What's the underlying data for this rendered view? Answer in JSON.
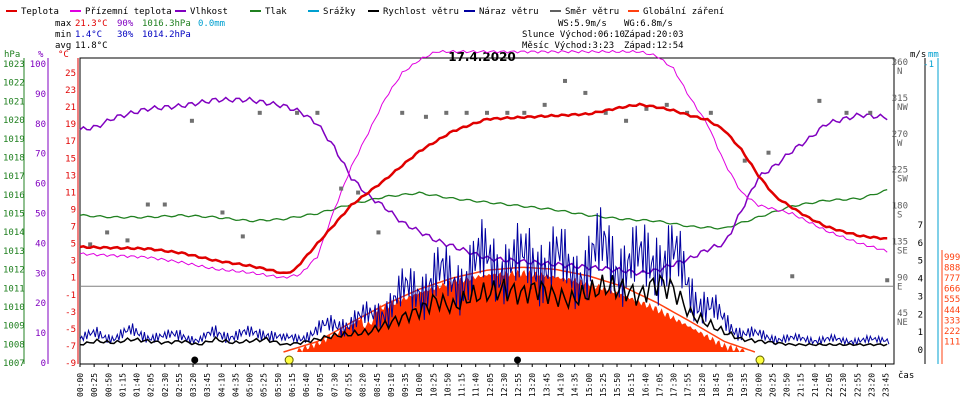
{
  "chart_data": {
    "type": "line",
    "title": "17.4.2020",
    "legend_items": [
      {
        "label": "Teplota",
        "color": "#e00000"
      },
      {
        "label": "Přízemní teplota",
        "color": "#e000e0"
      },
      {
        "label": "Vlhkost",
        "color": "#8000c0"
      },
      {
        "label": "Tlak",
        "color": "#208020"
      },
      {
        "label": "Srážky",
        "color": "#00a0d0"
      },
      {
        "label": "Rychlost větru",
        "color": "#000000"
      },
      {
        "label": "Náraz větru",
        "color": "#0000a0"
      },
      {
        "label": "Směr větru",
        "color": "#606060"
      },
      {
        "label": "Globální záření",
        "color": "#ff4010"
      }
    ],
    "stats": {
      "max_label": "max",
      "max_temp": "21.3°C",
      "max_hum": "90%",
      "max_press": "1016.3hPa",
      "max_rain": "0.0mm",
      "min_label": "min",
      "min_temp": "1.4°C",
      "min_hum": "30%",
      "min_press": "1014.2hPa",
      "avg_label": "avg",
      "avg_temp": "11.8°C"
    },
    "wind_info": {
      "ws": "WS:5.9m/s",
      "wg": "WG:6.8m/s",
      "sun": "Slunce Východ:06:10",
      "sun_set": "Západ:20:03",
      "moon": "Měsíc  Východ:3:23",
      "moon_set": "Západ:12:54"
    },
    "axes": {
      "hpa": {
        "label": "hPa",
        "color": "#208020",
        "ticks": [
          1023,
          1022,
          1021,
          1020,
          1019,
          1018,
          1017,
          1016,
          1015,
          1014,
          1013,
          1012,
          1011,
          1010,
          1009,
          1008,
          1007
        ]
      },
      "pct": {
        "label": "%",
        "color": "#8000c0",
        "ticks": [
          100,
          90,
          80,
          70,
          60,
          50,
          40,
          30,
          20,
          10,
          0
        ]
      },
      "degc": {
        "label": "°C",
        "color": "#e00000",
        "ticks": [
          25,
          23,
          21,
          19,
          17,
          15,
          13,
          11,
          9,
          7,
          5,
          3,
          1,
          -1,
          -3,
          -5,
          -7,
          -9
        ]
      },
      "ms": {
        "label": "m/s",
        "color": "#000000",
        "ticks": [
          7,
          6,
          5,
          4,
          3,
          2,
          1,
          0
        ]
      },
      "mm": {
        "label": "mm",
        "color": "#00a0d0",
        "ticks": [
          "-1"
        ]
      },
      "dir": {
        "color": "#606060",
        "ticks": [
          {
            "v": 360,
            "l": "N"
          },
          {
            "v": 315,
            "l": "NW"
          },
          {
            "v": 270,
            "l": "W"
          },
          {
            "v": 225,
            "l": "SW"
          },
          {
            "v": 180,
            "l": "S"
          },
          {
            "v": 135,
            "l": "SE"
          },
          {
            "v": 90,
            "l": "E"
          },
          {
            "v": 45,
            "l": "NE"
          }
        ]
      },
      "rad": {
        "color": "#ff4010",
        "ticks": [
          999,
          888,
          777,
          666,
          555,
          444,
          333,
          222,
          111
        ]
      }
    },
    "x_ticks": [
      "00:00",
      "00:25",
      "00:50",
      "01:15",
      "01:40",
      "02:05",
      "02:30",
      "02:55",
      "03:20",
      "03:45",
      "04:10",
      "04:35",
      "05:00",
      "05:25",
      "05:50",
      "06:15",
      "06:40",
      "07:05",
      "07:30",
      "07:55",
      "08:20",
      "08:45",
      "09:10",
      "09:35",
      "10:00",
      "10:25",
      "10:50",
      "11:15",
      "11:40",
      "12:05",
      "12:30",
      "12:55",
      "13:20",
      "13:45",
      "14:10",
      "14:35",
      "15:00",
      "15:25",
      "15:50",
      "16:15",
      "16:40",
      "17:05",
      "17:30",
      "17:55",
      "18:20",
      "18:45",
      "19:10",
      "19:35",
      "20:00",
      "20:25",
      "20:50",
      "21:15",
      "21:40",
      "22:05",
      "22:30",
      "22:55",
      "23:20",
      "23:45"
    ],
    "x_label": "čas",
    "series": [
      {
        "name": "Teplota",
        "unit": "°C",
        "x_hours": [
          0,
          1,
          2,
          3,
          4,
          5,
          5.5,
          6,
          6.3,
          7,
          8,
          9,
          10,
          11,
          12,
          13,
          14,
          15,
          16,
          16.5,
          17,
          17.5,
          18,
          18.5,
          19,
          19.5,
          20,
          20.5,
          21,
          21.5,
          22,
          22.5,
          23,
          23.9
        ],
        "values": [
          4.6,
          4.5,
          4.4,
          3.9,
          3.0,
          2.4,
          2.0,
          1.5,
          1.8,
          5.0,
          9.5,
          12.5,
          15.8,
          18.2,
          19.6,
          19.8,
          20.0,
          20.2,
          21.0,
          21.3,
          21.0,
          20.6,
          20.0,
          19.5,
          18.3,
          16.0,
          13.0,
          10.5,
          9.2,
          8.0,
          7.0,
          6.4,
          5.9,
          5.5
        ]
      },
      {
        "name": "Přízemní teplota",
        "unit": "°C",
        "x_hours": [
          0,
          1,
          2,
          3,
          4,
          5,
          6,
          6.5,
          7,
          7.5,
          8,
          8.5,
          9,
          9.5,
          10,
          10.5,
          11,
          12,
          13,
          14,
          15,
          16,
          16.5,
          17,
          17.5,
          18,
          18.5,
          19,
          19.5,
          20,
          21,
          22,
          23,
          23.9
        ],
        "values": [
          3.8,
          3.6,
          3.4,
          2.8,
          2.0,
          1.6,
          1.0,
          1.4,
          3.5,
          9.0,
          14.0,
          18.0,
          22.0,
          25.0,
          26.5,
          27.5,
          27.5,
          27.5,
          27.5,
          27.5,
          27.5,
          27.5,
          27.5,
          27.0,
          25.5,
          22.0,
          19.0,
          14.5,
          11.0,
          9.5,
          8.5,
          6.5,
          5.0,
          4.0
        ]
      },
      {
        "name": "Vlhkost",
        "unit": "%",
        "x_hours": [
          0,
          0.5,
          1,
          2,
          3,
          4,
          5,
          5.5,
          6,
          6.5,
          7,
          7.5,
          8,
          8.5,
          9,
          9.5,
          10,
          10.5,
          11,
          12,
          13,
          14,
          15,
          16,
          16.5,
          17,
          17.5,
          18,
          18.5,
          19,
          19.2,
          19.5,
          20,
          20.5,
          21,
          21.5,
          22,
          23,
          23.9
        ],
        "values": [
          78,
          79,
          82,
          85,
          86,
          88,
          88,
          87,
          86,
          84,
          80,
          72,
          62,
          56,
          52,
          47,
          44,
          41,
          39,
          35,
          34,
          33,
          32,
          31,
          30,
          31,
          33,
          35,
          38,
          40,
          44,
          51,
          62,
          66,
          71,
          75,
          80,
          83,
          82
        ]
      },
      {
        "name": "Tlak",
        "unit": "hPa",
        "x_hours": [
          0,
          1,
          2,
          3,
          4,
          5,
          6,
          7,
          8,
          9,
          10,
          11,
          12,
          13,
          14,
          15,
          16,
          17,
          18,
          19,
          20,
          21,
          22,
          23,
          23.9
        ],
        "values": [
          1014.9,
          1014.8,
          1014.8,
          1014.9,
          1014.8,
          1014.6,
          1014.7,
          1015.0,
          1015.5,
          1015.9,
          1016.1,
          1015.8,
          1015.6,
          1015.4,
          1015.2,
          1014.9,
          1014.7,
          1014.6,
          1014.3,
          1014.2,
          1014.8,
          1015.4,
          1015.7,
          1015.8,
          1016.3
        ]
      },
      {
        "name": "Rychlost větru",
        "unit": "m/s",
        "x_hours": [
          0,
          0.5,
          1,
          1.5,
          2,
          2.5,
          3,
          3.5,
          4,
          4.5,
          5,
          5.5,
          6,
          6.5,
          7,
          7.5,
          8,
          8.5,
          9,
          9.5,
          10,
          10.5,
          11,
          11.5,
          12,
          12.5,
          13,
          13.5,
          14,
          14.5,
          15,
          15.5,
          16,
          16.5,
          17,
          17.5,
          18,
          18.5,
          19,
          19.5,
          20,
          20.5,
          21,
          21.5,
          22,
          22.5,
          23,
          23.5,
          23.9
        ],
        "values": [
          0.3,
          0.5,
          0.4,
          0.6,
          0.5,
          0.4,
          0.5,
          0.3,
          0.6,
          0.4,
          0.5,
          0.6,
          0.3,
          0.4,
          0.6,
          0.8,
          0.9,
          1.0,
          1.4,
          1.8,
          2.2,
          2.8,
          2.4,
          3.0,
          3.2,
          3.4,
          3.1,
          3.5,
          3.0,
          2.8,
          3.2,
          3.6,
          3.4,
          3.0,
          3.8,
          3.4,
          2.0,
          1.5,
          1.0,
          0.6,
          0.5,
          0.4,
          0.3,
          0.3,
          0.3,
          0.3,
          0.3,
          0.3,
          0.3
        ]
      },
      {
        "name": "Náraz větru",
        "unit": "m/s",
        "x_hours": [
          0,
          0.5,
          1,
          1.5,
          2,
          2.5,
          3,
          3.5,
          4,
          4.5,
          5,
          5.5,
          6,
          6.5,
          7,
          7.5,
          8,
          8.5,
          9,
          9.5,
          10,
          10.5,
          11,
          11.5,
          12,
          12.5,
          13,
          13.5,
          14,
          14.5,
          15,
          15.5,
          16,
          16.5,
          17,
          17.5,
          18,
          18.5,
          19,
          19.5,
          20,
          20.5,
          21,
          21.5,
          22,
          22.5,
          23,
          23.5,
          23.9
        ],
        "values": [
          0.6,
          0.9,
          0.7,
          1.0,
          0.8,
          0.7,
          0.9,
          0.5,
          1.0,
          0.8,
          0.9,
          1.0,
          0.6,
          0.7,
          1.1,
          1.4,
          1.6,
          1.8,
          2.4,
          3.0,
          3.6,
          4.0,
          3.8,
          4.6,
          4.8,
          5.0,
          4.6,
          5.2,
          4.8,
          4.4,
          4.9,
          5.4,
          5.0,
          4.6,
          5.5,
          5.0,
          3.4,
          2.4,
          1.6,
          1.0,
          0.8,
          0.7,
          0.6,
          0.6,
          0.6,
          0.5,
          0.6,
          0.5,
          0.6
        ]
      },
      {
        "name": "Směr větru",
        "unit": "°",
        "x_hours": [
          0.3,
          0.8,
          1.4,
          2.0,
          2.5,
          3.3,
          4.2,
          4.8,
          5.3,
          6.4,
          7.0,
          7.7,
          8.2,
          8.8,
          9.5,
          10.2,
          10.8,
          11.4,
          12.0,
          12.6,
          13.1,
          13.7,
          14.3,
          14.9,
          15.5,
          16.1,
          16.7,
          17.3,
          17.9,
          18.6,
          19.6,
          20.3,
          21.0,
          21.8,
          22.6,
          23.3,
          23.8
        ],
        "values": [
          135,
          150,
          140,
          185,
          185,
          290,
          175,
          145,
          300,
          300,
          300,
          205,
          200,
          150,
          300,
          295,
          300,
          300,
          300,
          300,
          300,
          310,
          340,
          325,
          300,
          290,
          305,
          310,
          300,
          300,
          240,
          250,
          95,
          315,
          300,
          300,
          90
        ]
      },
      {
        "name": "Globální záření",
        "unit": "W/m²",
        "x_hours": [
          6.3,
          7,
          8,
          8.5,
          9,
          10,
          11,
          12,
          13,
          13.5,
          14,
          15,
          16,
          17,
          18,
          19,
          19.7
        ],
        "values": [
          0,
          90,
          280,
          420,
          480,
          620,
          740,
          810,
          830,
          820,
          790,
          720,
          600,
          450,
          260,
          60,
          0
        ]
      },
      {
        "name": "Globální záření (teoretické)",
        "unit": "W/m²",
        "x_hours": [
          6.0,
          7,
          8,
          9,
          10,
          11,
          12,
          13,
          13.1,
          14,
          15,
          16,
          17,
          18,
          19,
          19.9
        ],
        "values": [
          0,
          110,
          310,
          500,
          660,
          780,
          860,
          890,
          890,
          870,
          800,
          690,
          520,
          320,
          110,
          0
        ]
      }
    ],
    "markers": {
      "sunrise": "06:10",
      "sunset": "20:03",
      "moonrise": "03:23",
      "moonset": "12:54"
    },
    "grid": false
  }
}
